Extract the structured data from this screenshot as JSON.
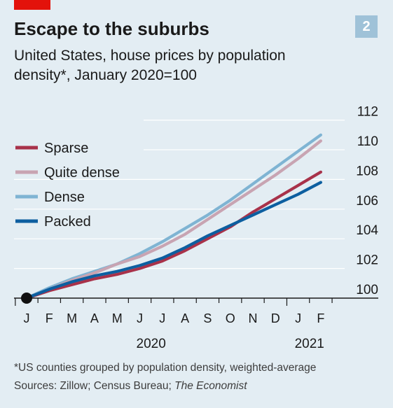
{
  "header": {
    "title": "Escape to the suburbs",
    "subtitle": "United States, house prices by population density*, January 2020=100",
    "chart_number": "2"
  },
  "footer": {
    "footnote": "*US counties grouped by population density, weighted-average",
    "sources_prefix": "Sources: Zillow; Census Bureau; ",
    "sources_publication": "The Economist"
  },
  "colors": {
    "background": "#e3edf3",
    "brand_red": "#e3120b",
    "Sparse": "#a8324a",
    "Quite dense": "#c8a4b2",
    "Dense": "#7fb4d3",
    "Packed": "#0d5fa0",
    "grid": "#ffffff",
    "axis": "#1a1a1a"
  },
  "chart_data": {
    "type": "line",
    "title": "Escape to the suburbs",
    "subtitle": "United States, house prices by population density*, January 2020=100",
    "x": [
      "J",
      "F",
      "M",
      "A",
      "M",
      "J",
      "J",
      "A",
      "S",
      "O",
      "N",
      "D",
      "J",
      "F"
    ],
    "year_labels": [
      "2020",
      "2021"
    ],
    "ylim": [
      100,
      112
    ],
    "yticks": [
      "100",
      "102",
      "104",
      "106",
      "108",
      "110",
      "112"
    ],
    "grid": true,
    "legend_position": "top-left",
    "series": [
      {
        "name": "Sparse",
        "values": [
          100,
          100.5,
          100.9,
          101.3,
          101.6,
          102.0,
          102.5,
          103.2,
          104.0,
          104.8,
          105.8,
          106.7,
          107.6,
          108.5
        ]
      },
      {
        "name": "Quite dense",
        "values": [
          100,
          100.6,
          101.2,
          101.7,
          102.3,
          102.8,
          103.5,
          104.3,
          105.3,
          106.3,
          107.3,
          108.3,
          109.4,
          110.6
        ]
      },
      {
        "name": "Dense",
        "values": [
          100,
          100.7,
          101.3,
          101.8,
          102.3,
          103.0,
          103.8,
          104.7,
          105.6,
          106.6,
          107.7,
          108.8,
          109.9,
          111.0
        ]
      },
      {
        "name": "Packed",
        "values": [
          100,
          100.6,
          101.1,
          101.5,
          101.8,
          102.2,
          102.7,
          103.4,
          104.2,
          104.9,
          105.6,
          106.3,
          107.0,
          107.8
        ]
      }
    ]
  }
}
